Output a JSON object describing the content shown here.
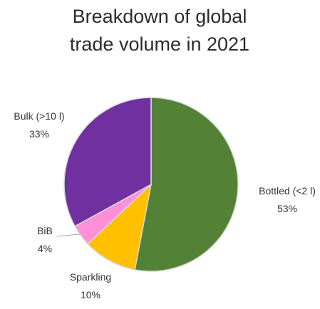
{
  "chart_data": {
    "type": "pie",
    "title_lines": [
      "Breakdown of global",
      "trade volume in 2021"
    ],
    "start_angle_deg": 0,
    "direction": "clockwise",
    "slices": [
      {
        "label": "Bottled (<2 l)",
        "percent_text": "53%",
        "value": 53,
        "color": "#538135"
      },
      {
        "label": "Sparkling",
        "percent_text": "10%",
        "value": 10,
        "color": "#ffc000"
      },
      {
        "label": "BiB",
        "percent_text": "4%",
        "value": 4,
        "color": "#ff8fd8"
      },
      {
        "label": "Bulk (>10 l)",
        "percent_text": "33%",
        "value": 33,
        "color": "#7030a0"
      }
    ]
  }
}
